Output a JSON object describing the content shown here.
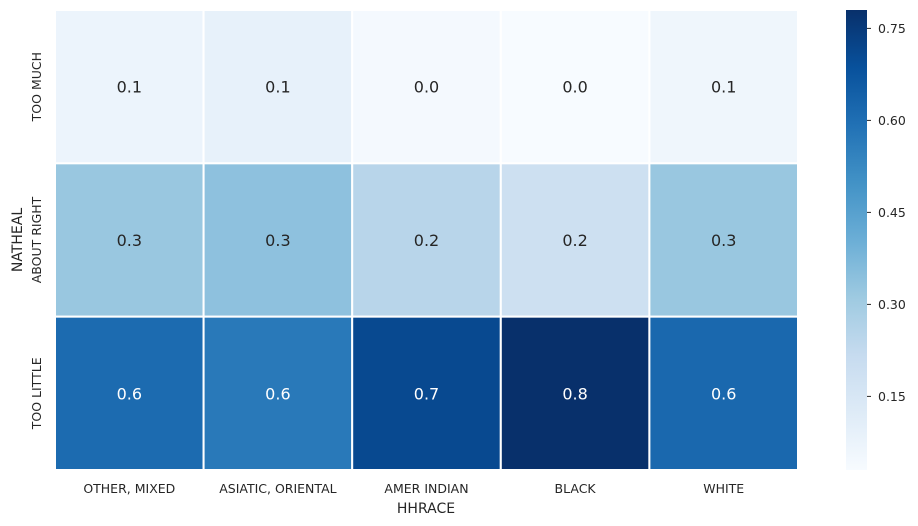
{
  "chart_data": {
    "type": "heatmap",
    "title": "",
    "xlabel": "HHRACE",
    "ylabel": "NATHEAL",
    "x_categories": [
      "OTHER, MIXED",
      "ASIATIC, ORIENTAL",
      "AMER INDIAN",
      "BLACK",
      "WHITE"
    ],
    "y_categories": [
      "TOO MUCH",
      "ABOUT RIGHT",
      "TOO LITTLE"
    ],
    "values": [
      [
        0.07,
        0.09,
        0.04,
        0.03,
        0.06
      ],
      [
        0.32,
        0.34,
        0.25,
        0.19,
        0.32
      ],
      [
        0.61,
        0.57,
        0.71,
        0.78,
        0.62
      ]
    ],
    "annotations": [
      [
        "0.1",
        "0.1",
        "0.0",
        "0.0",
        "0.1"
      ],
      [
        "0.3",
        "0.3",
        "0.2",
        "0.2",
        "0.3"
      ],
      [
        "0.6",
        "0.6",
        "0.7",
        "0.8",
        "0.6"
      ]
    ],
    "colormap": "Blues",
    "vmin": 0.03,
    "vmax": 0.78,
    "colorbar_ticks": [
      "0.15",
      "0.30",
      "0.45",
      "0.60",
      "0.75"
    ],
    "colorbar_tick_values": [
      0.15,
      0.3,
      0.45,
      0.6,
      0.75
    ]
  }
}
